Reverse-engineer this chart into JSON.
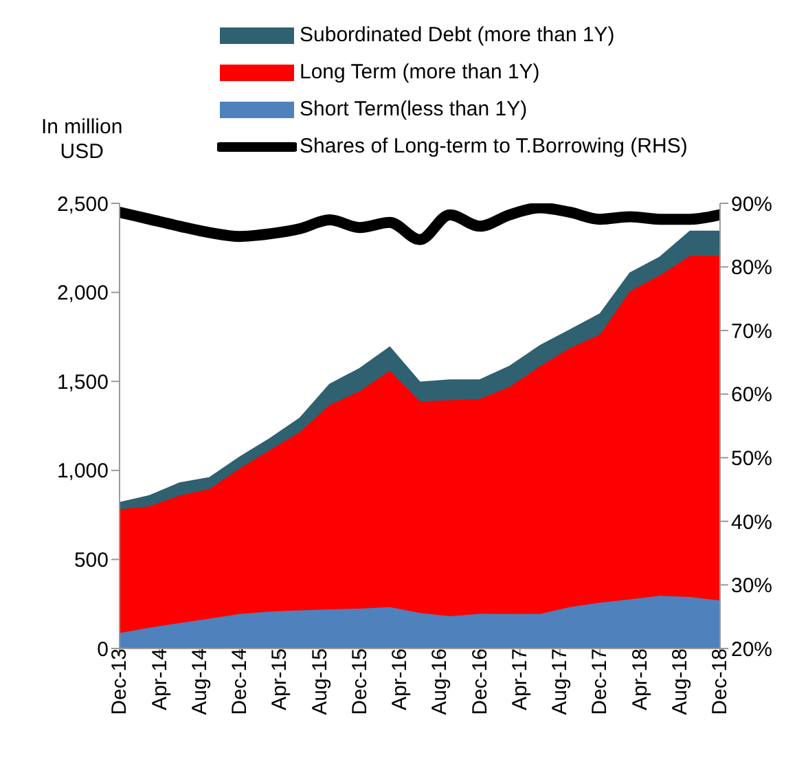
{
  "chart_data": {
    "type": "area",
    "stacked": true,
    "ylabel": "In million USD",
    "legend": "top",
    "grid": false,
    "marker": "none",
    "x": [
      "2013-12",
      "2014-03",
      "2014-06",
      "2014-09",
      "2014-12",
      "2015-03",
      "2015-06",
      "2015-09",
      "2015-12",
      "2016-03",
      "2016-06",
      "2016-09",
      "2016-12",
      "2017-03",
      "2017-06",
      "2017-09",
      "2017-12",
      "2018-03",
      "2018-06",
      "2018-09",
      "2018-12"
    ],
    "series": [
      {
        "name": "Short Term(less than 1Y)",
        "color": "#4f81bd",
        "values": [
          87,
          117,
          143,
          168,
          194,
          207,
          214,
          220,
          224,
          232,
          200,
          181,
          195,
          194,
          194,
          232,
          258,
          276,
          296,
          289,
          270
        ]
      },
      {
        "name": "Long Term (more than 1Y)",
        "color": "#ff0000",
        "values": [
          694,
          682,
          715,
          728,
          817,
          906,
          1001,
          1148,
          1221,
          1328,
          1188,
          1213,
          1206,
          1276,
          1391,
          1455,
          1505,
          1730,
          1800,
          1916,
          1935
        ]
      },
      {
        "name": "Subordinated Debt (more than 1Y)",
        "color": "#2f6170",
        "values": [
          38,
          59,
          71,
          63,
          63,
          64,
          77,
          115,
          127,
          132,
          107,
          114,
          107,
          115,
          115,
          102,
          115,
          102,
          102,
          138,
          138
        ]
      },
      {
        "name": "Shares of Long-term to T.Borrowing (RHS)",
        "type": "line",
        "axis": "y2",
        "color": "#000000",
        "values": [
          88.6,
          87.5,
          86.4,
          85.4,
          84.8,
          85.2,
          86.0,
          87.4,
          86.2,
          87.0,
          84.3,
          88.2,
          86.4,
          88.2,
          89.3,
          88.6,
          87.5,
          87.9,
          87.5,
          87.5,
          88.2
        ]
      }
    ],
    "xlim": [
      "2013-12",
      "2018-12"
    ],
    "xticks": [
      {
        "value": "2013-12",
        "label": "Dec-13"
      },
      {
        "value": "2014-04",
        "label": "Apr-14"
      },
      {
        "value": "2014-08",
        "label": "Aug-14"
      },
      {
        "value": "2014-12",
        "label": "Dec-14"
      },
      {
        "value": "2015-04",
        "label": "Apr-15"
      },
      {
        "value": "2015-08",
        "label": "Aug-15"
      },
      {
        "value": "2015-12",
        "label": "Dec-15"
      },
      {
        "value": "2016-04",
        "label": "Apr-16"
      },
      {
        "value": "2016-08",
        "label": "Aug-16"
      },
      {
        "value": "2016-12",
        "label": "Dec-16"
      },
      {
        "value": "2017-04",
        "label": "Apr-17"
      },
      {
        "value": "2017-08",
        "label": "Aug-17"
      },
      {
        "value": "2017-12",
        "label": "Dec-17"
      },
      {
        "value": "2018-04",
        "label": "Apr-18"
      },
      {
        "value": "2018-08",
        "label": "Aug-18"
      },
      {
        "value": "2018-12",
        "label": "Dec-18"
      }
    ],
    "ylim": [
      0,
      2500
    ],
    "yticks": [
      0,
      500,
      {
        "value": 1000,
        "label": "1,000"
      },
      {
        "value": 1500,
        "label": "1,500"
      },
      {
        "value": 2000,
        "label": "2,000"
      },
      {
        "value": 2500,
        "label": "2,500"
      }
    ],
    "y2lim": [
      20,
      90
    ],
    "y2ticks": [
      {
        "value": 20,
        "label": "20%"
      },
      {
        "value": 30,
        "label": "30%"
      },
      {
        "value": 40,
        "label": "40%"
      },
      {
        "value": 50,
        "label": "50%"
      },
      {
        "value": 60,
        "label": "60%"
      },
      {
        "value": 70,
        "label": "70%"
      },
      {
        "value": 80,
        "label": "80%"
      },
      {
        "value": 90,
        "label": "90%"
      }
    ]
  }
}
